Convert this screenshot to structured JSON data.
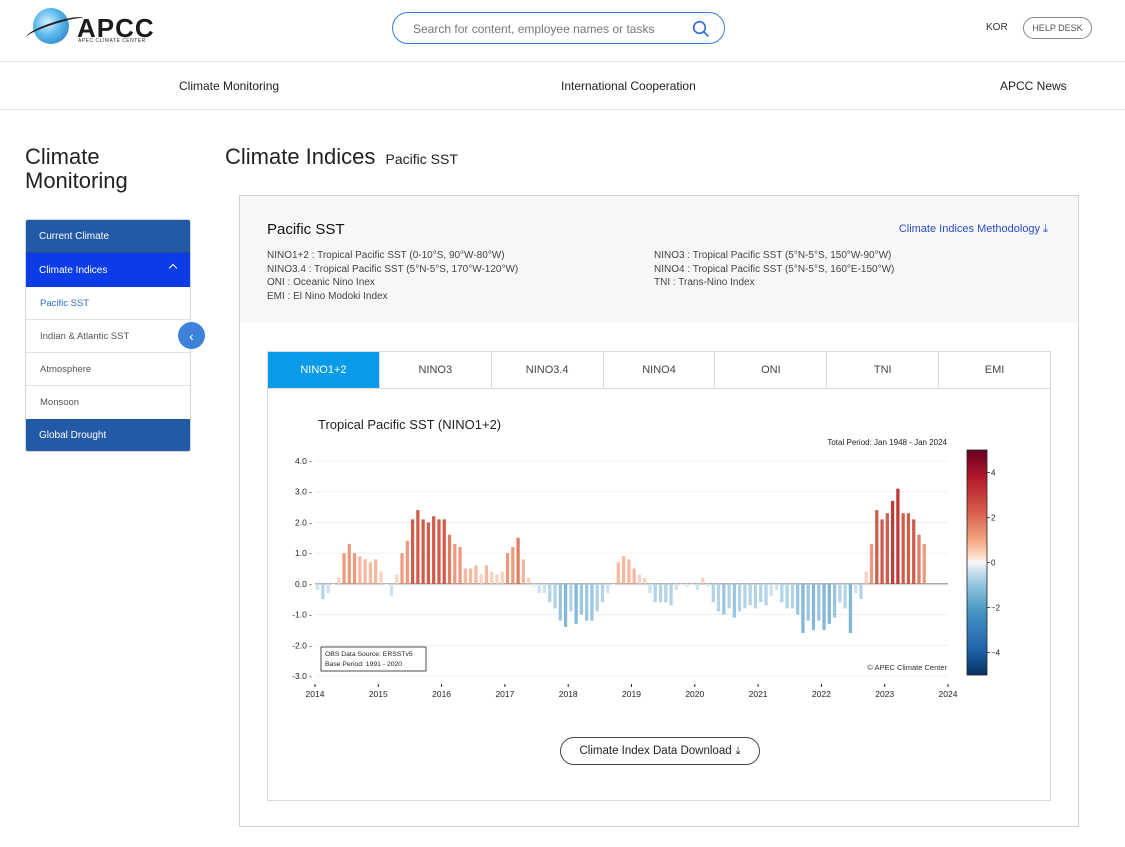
{
  "header": {
    "logo_text": "APCC",
    "logo_sub": "APEC CLIMATE CENTER",
    "search_placeholder": "Search for content, employee names or tasks",
    "lang": "KOR",
    "help_desk": "HELP DESK"
  },
  "nav": {
    "items": [
      "Climate Monitoring",
      "International Cooperation",
      "APCC News"
    ]
  },
  "sidebar": {
    "title_line1": "Climate",
    "title_line2": "Monitoring",
    "current_climate": "Current Climate",
    "climate_indices": "Climate Indices",
    "sub_items": [
      "Pacific SST",
      "Indian & Atlantic SST",
      "Atmosphere",
      "Monsoon"
    ],
    "global_drought": "Global Drought"
  },
  "page": {
    "title": "Climate Indices",
    "subtitle": "Pacific SST"
  },
  "card": {
    "heading": "Pacific SST",
    "methodology_link": "Climate Indices Methodology",
    "defs_left": [
      "NINO1+2 : Tropical Pacific SST (0-10°S, 90°W-80°W)",
      "NINO3.4 : Tropical Pacific SST (5°N-5°S, 170°W-120°W)",
      "ONI : Oceanic Nino Inex",
      "EMI : El Nino Modoki Index"
    ],
    "defs_right": [
      "NINO3 : Tropical Pacific SST (5°N-5°S, 150°W-90°W)",
      "NINO4 : Tropical Pacific SST (5°N-5°S, 160°E-150°W)",
      "TNI : Trans-Nino Index"
    ],
    "tabs": [
      "NINO1+2",
      "NINO3",
      "NINO3.4",
      "NINO4",
      "ONI",
      "TNI",
      "EMI"
    ],
    "active_tab": "NINO1+2",
    "download_button": "Climate Index Data Download"
  },
  "chart_data": {
    "type": "bar",
    "title": "Tropical Pacific SST  (NINO1+2)",
    "period_note": "Total Period: Jan 1948 - Jan 2024",
    "obs_source": "OBS Data Source: ERSSTv5",
    "base_period": "Base Period: 1991 - 2020",
    "credit": "© APEC Climate Center",
    "ylim": [
      -3.0,
      4.0
    ],
    "yticks": [
      "4.0",
      "3.0",
      "2.0",
      "1.0",
      "0.0",
      "-1.0",
      "-2.0",
      "-3.0"
    ],
    "xticks": [
      "2014",
      "2015",
      "2016",
      "2017",
      "2018",
      "2019",
      "2020",
      "2021",
      "2022",
      "2023",
      "2024"
    ],
    "x_start": "2014-01",
    "colorbar_ticks": [
      "4",
      "2",
      "0",
      "−2",
      "−4"
    ],
    "colorbar_range": [
      -5,
      5
    ],
    "values": [
      -0.2,
      -0.5,
      -0.3,
      0.0,
      0.2,
      1.0,
      1.3,
      1.0,
      0.9,
      0.8,
      0.7,
      0.8,
      0.4,
      0.0,
      -0.4,
      0.3,
      1.0,
      1.4,
      2.1,
      2.4,
      2.1,
      2.0,
      2.2,
      2.1,
      2.1,
      1.6,
      1.3,
      1.2,
      0.5,
      0.5,
      0.6,
      0.3,
      0.6,
      0.4,
      0.3,
      0.4,
      1.0,
      1.2,
      1.5,
      0.8,
      0.2,
      -0.1,
      -0.3,
      -0.3,
      -0.6,
      -0.8,
      -1.2,
      -1.4,
      -0.9,
      -1.3,
      -1.0,
      -1.2,
      -1.2,
      -0.9,
      -0.6,
      -0.3,
      0.0,
      0.7,
      0.9,
      0.8,
      0.5,
      0.3,
      0.2,
      -0.3,
      -0.6,
      -0.6,
      -0.6,
      -0.7,
      -0.2,
      0.0,
      -0.1,
      0.0,
      -0.2,
      0.2,
      -0.1,
      -0.6,
      -0.9,
      -1.0,
      -0.8,
      -1.1,
      -0.9,
      -0.8,
      -0.7,
      -0.8,
      -0.6,
      -0.7,
      -0.4,
      -0.2,
      -0.6,
      -0.8,
      -0.8,
      -1.0,
      -1.6,
      -1.2,
      -1.5,
      -1.2,
      -1.5,
      -1.3,
      -1.1,
      -0.6,
      -0.8,
      -1.6,
      -0.3,
      -0.5,
      0.4,
      1.3,
      2.4,
      2.1,
      2.3,
      2.7,
      3.1,
      2.3,
      2.3,
      2.1,
      1.6,
      1.3
    ]
  }
}
